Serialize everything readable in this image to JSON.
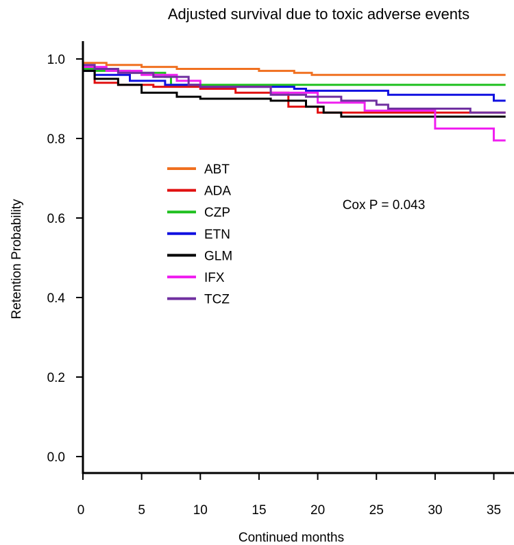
{
  "chart_data": {
    "type": "line",
    "title": "Adjusted survival due to toxic adverse events",
    "xlabel": "Continued months",
    "ylabel": "Retention Probability",
    "xlim": [
      0,
      36
    ],
    "ylim": [
      0,
      1.0
    ],
    "x_ticks": [
      "0",
      "5",
      "10",
      "15",
      "20",
      "25",
      "30",
      "35"
    ],
    "y_ticks": [
      "0.0",
      "0.2",
      "0.4",
      "0.6",
      "0.8",
      "1.0"
    ],
    "annotation": "Cox P = 0.043",
    "legend_position": "upper-left",
    "step": true,
    "series": [
      {
        "name": "ABT",
        "color": "#f07020",
        "points": [
          [
            0,
            0.99
          ],
          [
            2,
            0.985
          ],
          [
            5,
            0.98
          ],
          [
            8,
            0.975
          ],
          [
            15,
            0.97
          ],
          [
            18,
            0.965
          ],
          [
            19.5,
            0.96
          ],
          [
            36,
            0.96
          ]
        ]
      },
      {
        "name": "ADA",
        "color": "#e01010",
        "points": [
          [
            0,
            0.98
          ],
          [
            1,
            0.94
          ],
          [
            3,
            0.935
          ],
          [
            6,
            0.93
          ],
          [
            10,
            0.925
          ],
          [
            13,
            0.915
          ],
          [
            17.5,
            0.88
          ],
          [
            20,
            0.865
          ],
          [
            23,
            0.865
          ],
          [
            36,
            0.865
          ]
        ]
      },
      {
        "name": "CZP",
        "color": "#20c020",
        "points": [
          [
            0,
            0.975
          ],
          [
            1,
            0.97
          ],
          [
            4,
            0.965
          ],
          [
            7,
            0.955
          ],
          [
            7.5,
            0.935
          ],
          [
            36,
            0.935
          ]
        ]
      },
      {
        "name": "ETN",
        "color": "#1010e0",
        "points": [
          [
            0,
            0.97
          ],
          [
            1,
            0.96
          ],
          [
            4,
            0.945
          ],
          [
            7,
            0.935
          ],
          [
            10,
            0.93
          ],
          [
            18,
            0.925
          ],
          [
            19,
            0.92
          ],
          [
            26,
            0.91
          ],
          [
            35,
            0.895
          ],
          [
            36,
            0.895
          ]
        ]
      },
      {
        "name": "GLM",
        "color": "#000000",
        "points": [
          [
            0,
            0.97
          ],
          [
            1,
            0.95
          ],
          [
            3,
            0.935
          ],
          [
            5,
            0.915
          ],
          [
            8,
            0.905
          ],
          [
            10,
            0.9
          ],
          [
            16,
            0.895
          ],
          [
            19,
            0.88
          ],
          [
            20.5,
            0.865
          ],
          [
            22,
            0.855
          ],
          [
            36,
            0.855
          ]
        ]
      },
      {
        "name": "IFX",
        "color": "#f020f0",
        "points": [
          [
            0,
            0.98
          ],
          [
            2,
            0.97
          ],
          [
            5,
            0.96
          ],
          [
            8,
            0.945
          ],
          [
            10,
            0.93
          ],
          [
            16,
            0.915
          ],
          [
            20,
            0.89
          ],
          [
            24,
            0.87
          ],
          [
            30,
            0.825
          ],
          [
            35,
            0.795
          ],
          [
            36,
            0.795
          ]
        ]
      },
      {
        "name": "TCZ",
        "color": "#7030a0",
        "points": [
          [
            0,
            0.985
          ],
          [
            1,
            0.975
          ],
          [
            3,
            0.965
          ],
          [
            6,
            0.955
          ],
          [
            9,
            0.935
          ],
          [
            10,
            0.93
          ],
          [
            16,
            0.91
          ],
          [
            19,
            0.905
          ],
          [
            22,
            0.895
          ],
          [
            25,
            0.885
          ],
          [
            26,
            0.875
          ],
          [
            33,
            0.865
          ],
          [
            36,
            0.865
          ]
        ]
      }
    ]
  }
}
